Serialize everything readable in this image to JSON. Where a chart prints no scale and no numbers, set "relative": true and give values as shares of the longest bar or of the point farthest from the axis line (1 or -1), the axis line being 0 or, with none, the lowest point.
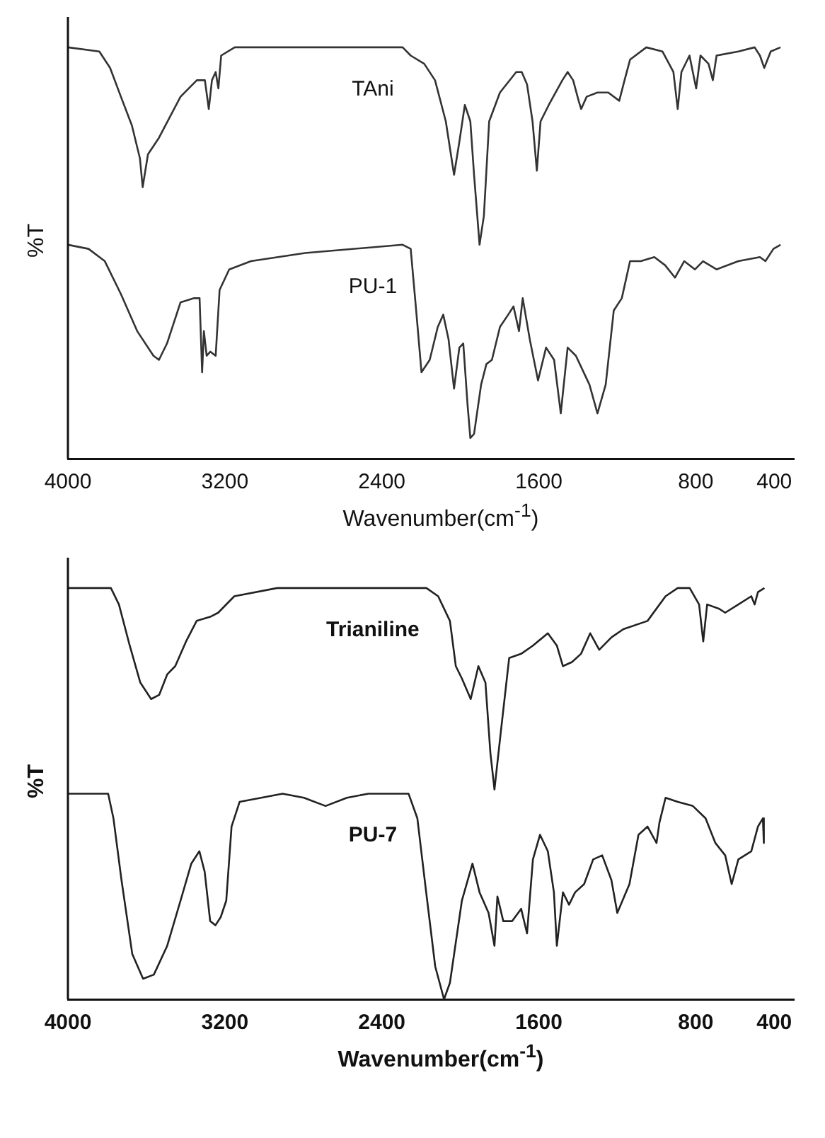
{
  "chart_data": [
    {
      "type": "line",
      "relative": true,
      "ylabel": "%T",
      "xlabel": "Wavenumber(cm$^{-1}$)",
      "xlim": [
        4000,
        300
      ],
      "xticks": [
        4000,
        3200,
        2400,
        1600,
        800,
        400
      ],
      "tick_labels": "x",
      "grid": false,
      "legend": false,
      "marker": "none",
      "line_style": "solid",
      "series": [
        {
          "name": "TAni",
          "color": "#333333",
          "x": [
            4000,
            3840,
            3785,
            3730,
            3674,
            3633,
            3619,
            3592,
            3536,
            3426,
            3343,
            3302,
            3282,
            3266,
            3247,
            3233,
            3219,
            3150,
            2791,
            2294,
            2253,
            2184,
            2129,
            2074,
            2032,
            2005,
            1977,
            1949,
            1930,
            1902,
            1880,
            1853,
            1798,
            1715,
            1687,
            1660,
            1632,
            1610,
            1591,
            1549,
            1480,
            1453,
            1425,
            1397,
            1384,
            1356,
            1301,
            1246,
            1190,
            1163,
            1135,
            1052,
            970,
            914,
            892,
            873,
            832,
            798,
            776,
            735,
            713,
            694,
            583,
            500,
            473,
            451,
            418,
            368
          ],
          "values": [
            1.0,
            0.99,
            0.95,
            0.88,
            0.81,
            0.73,
            0.66,
            0.74,
            0.78,
            0.88,
            0.92,
            0.92,
            0.85,
            0.92,
            0.94,
            0.9,
            0.98,
            1.0,
            1.0,
            1.0,
            0.98,
            0.96,
            0.92,
            0.82,
            0.69,
            0.77,
            0.86,
            0.82,
            0.69,
            0.52,
            0.59,
            0.82,
            0.89,
            0.94,
            0.94,
            0.91,
            0.82,
            0.7,
            0.82,
            0.86,
            0.92,
            0.94,
            0.92,
            0.87,
            0.85,
            0.88,
            0.89,
            0.89,
            0.87,
            0.92,
            0.97,
            1.0,
            0.99,
            0.94,
            0.85,
            0.94,
            0.98,
            0.9,
            0.98,
            0.96,
            0.92,
            0.98,
            0.99,
            1.0,
            0.98,
            0.95,
            0.99,
            1.0
          ]
        },
        {
          "name": "PU-1",
          "color": "#333333",
          "x": [
            4000,
            3895,
            3812,
            3730,
            3647,
            3564,
            3536,
            3495,
            3426,
            3357,
            3329,
            3316,
            3307,
            3293,
            3274,
            3247,
            3227,
            3178,
            3067,
            2791,
            2294,
            2253,
            2225,
            2198,
            2156,
            2115,
            2087,
            2060,
            2032,
            2005,
            1985,
            1963,
            1949,
            1930,
            1894,
            1867,
            1839,
            1798,
            1756,
            1729,
            1701,
            1682,
            1646,
            1604,
            1563,
            1522,
            1488,
            1453,
            1411,
            1342,
            1301,
            1259,
            1218,
            1177,
            1135,
            1080,
            1011,
            956,
            906,
            859,
            804,
            763,
            694,
            583,
            473,
            445,
            404,
            368
          ],
          "values": [
            0.52,
            0.51,
            0.48,
            0.4,
            0.31,
            0.25,
            0.24,
            0.28,
            0.38,
            0.39,
            0.39,
            0.21,
            0.31,
            0.25,
            0.26,
            0.25,
            0.41,
            0.46,
            0.48,
            0.5,
            0.52,
            0.51,
            0.36,
            0.21,
            0.24,
            0.32,
            0.35,
            0.29,
            0.17,
            0.27,
            0.28,
            0.13,
            0.05,
            0.06,
            0.18,
            0.23,
            0.24,
            0.32,
            0.35,
            0.37,
            0.31,
            0.39,
            0.29,
            0.19,
            0.27,
            0.24,
            0.11,
            0.27,
            0.25,
            0.18,
            0.11,
            0.18,
            0.36,
            0.39,
            0.48,
            0.48,
            0.49,
            0.47,
            0.44,
            0.48,
            0.46,
            0.48,
            0.46,
            0.48,
            0.49,
            0.48,
            0.51,
            0.52
          ]
        }
      ]
    },
    {
      "type": "line",
      "relative": true,
      "ylabel": "%T",
      "xlabel": "Wavenumber(cm$^{-1}$)",
      "xlim": [
        4000,
        300
      ],
      "xticks": [
        4000,
        3200,
        2400,
        1600,
        800,
        400
      ],
      "tick_labels": "x",
      "grid": false,
      "legend": false,
      "marker": "none",
      "line_style": "solid",
      "series": [
        {
          "name": "Trianiline",
          "color": "#222222",
          "x": [
            4000,
            3781,
            3740,
            3685,
            3631,
            3576,
            3535,
            3494,
            3453,
            3398,
            3344,
            3275,
            3234,
            3152,
            2933,
            2523,
            2173,
            2113,
            2053,
            2023,
            1992,
            1947,
            1908,
            1872,
            1847,
            1826,
            1796,
            1751,
            1690,
            1630,
            1554,
            1508,
            1477,
            1431,
            1385,
            1338,
            1292,
            1230,
            1169,
            1046,
            954,
            892,
            831,
            783,
            762,
            742,
            683,
            650,
            583,
            517,
            500,
            483,
            450
          ],
          "values": [
            1.0,
            1.0,
            0.96,
            0.86,
            0.77,
            0.73,
            0.74,
            0.79,
            0.81,
            0.87,
            0.92,
            0.93,
            0.94,
            0.98,
            1.0,
            1.0,
            1.0,
            0.98,
            0.92,
            0.81,
            0.78,
            0.73,
            0.81,
            0.77,
            0.6,
            0.51,
            0.64,
            0.83,
            0.84,
            0.86,
            0.89,
            0.86,
            0.81,
            0.82,
            0.84,
            0.89,
            0.85,
            0.88,
            0.9,
            0.92,
            0.98,
            1.0,
            1.0,
            0.96,
            0.87,
            0.96,
            0.95,
            0.94,
            0.96,
            0.98,
            0.96,
            0.99,
            1.0
          ]
        },
        {
          "name": "PU-7",
          "color": "#222222",
          "x": [
            4000,
            3795,
            3768,
            3727,
            3672,
            3617,
            3562,
            3494,
            3426,
            3371,
            3330,
            3303,
            3275,
            3248,
            3221,
            3193,
            3166,
            3125,
            3015,
            2906,
            2797,
            2687,
            2578,
            2469,
            2264,
            2219,
            2174,
            2128,
            2083,
            2053,
            1992,
            1938,
            1902,
            1856,
            1826,
            1811,
            1781,
            1736,
            1690,
            1660,
            1630,
            1594,
            1554,
            1523,
            1508,
            1477,
            1446,
            1415,
            1369,
            1323,
            1277,
            1230,
            1200,
            1138,
            1092,
            1046,
            1000,
            985,
            954,
            892,
            815,
            750,
            700,
            650,
            617,
            583,
            517,
            483,
            458,
            453
          ],
          "values": [
            0.5,
            0.5,
            0.44,
            0.29,
            0.11,
            0.05,
            0.06,
            0.13,
            0.24,
            0.33,
            0.36,
            0.31,
            0.19,
            0.18,
            0.2,
            0.24,
            0.42,
            0.48,
            0.49,
            0.5,
            0.49,
            0.47,
            0.49,
            0.5,
            0.5,
            0.44,
            0.26,
            0.08,
            0.0,
            0.04,
            0.24,
            0.33,
            0.26,
            0.21,
            0.13,
            0.25,
            0.19,
            0.19,
            0.22,
            0.16,
            0.34,
            0.4,
            0.36,
            0.26,
            0.13,
            0.26,
            0.23,
            0.26,
            0.28,
            0.34,
            0.35,
            0.29,
            0.21,
            0.28,
            0.4,
            0.42,
            0.38,
            0.43,
            0.49,
            0.48,
            0.47,
            0.44,
            0.38,
            0.35,
            0.28,
            0.34,
            0.36,
            0.42,
            0.44,
            0.38
          ]
        }
      ]
    }
  ]
}
